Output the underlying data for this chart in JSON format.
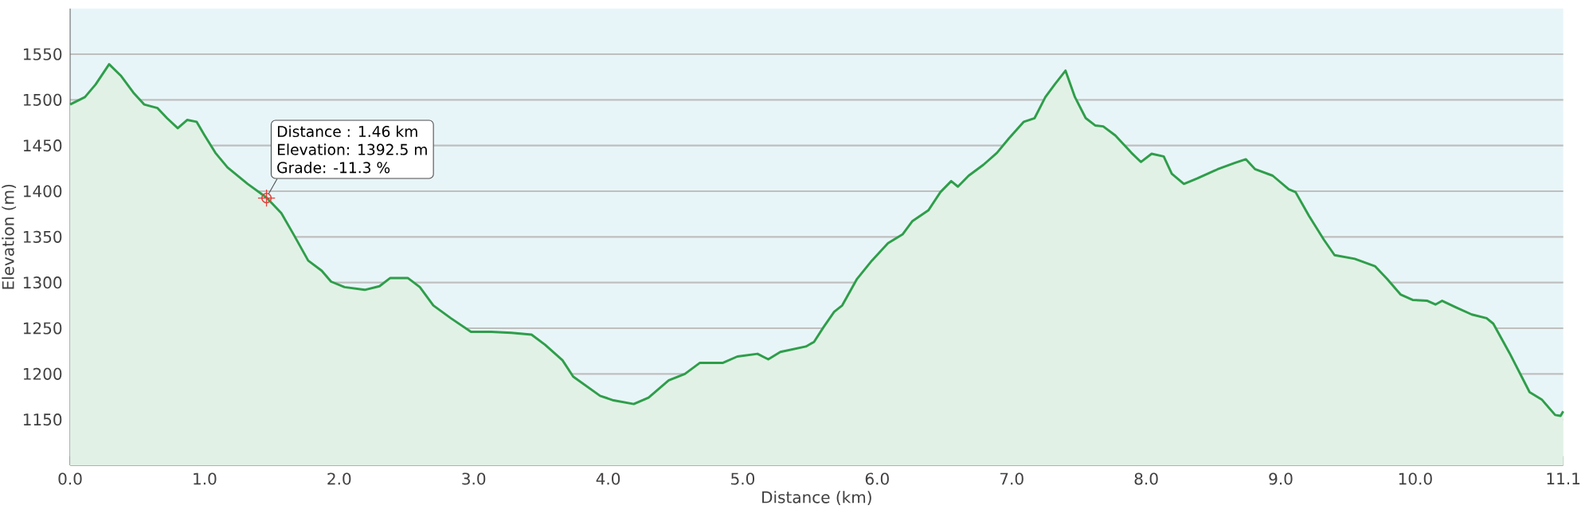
{
  "chart_data": {
    "type": "area",
    "xlabel": "Distance  (km)",
    "ylabel": "Elevation (m)",
    "xlim": [
      0,
      11.1
    ],
    "ylim": [
      1100,
      1600
    ],
    "xticks": [
      {
        "value": 0,
        "label": "0.0"
      },
      {
        "value": 1,
        "label": "1.0"
      },
      {
        "value": 2,
        "label": "2.0"
      },
      {
        "value": 3,
        "label": "3.0"
      },
      {
        "value": 4,
        "label": "4.0"
      },
      {
        "value": 5,
        "label": "5.0"
      },
      {
        "value": 6,
        "label": "6.0"
      },
      {
        "value": 7,
        "label": "7.0"
      },
      {
        "value": 8,
        "label": "8.0"
      },
      {
        "value": 9,
        "label": "9.0"
      },
      {
        "value": 10,
        "label": "10.0"
      },
      {
        "value": 11.1,
        "label": "11.1"
      }
    ],
    "yticks": [
      1150,
      1200,
      1250,
      1300,
      1350,
      1400,
      1450,
      1500,
      1550
    ],
    "grid": "y",
    "marker": "none",
    "line_style": "solid",
    "annotations": [
      "Distance : 1.46 km",
      "Elevation: 1392.5 m",
      "Grade: -11.3 %"
    ],
    "series": [
      {
        "color": "#2e9e4a",
        "x": [
          0,
          0.11,
          0.19,
          0.29,
          0.38,
          0.47,
          0.55,
          0.65,
          0.72,
          0.8,
          0.87,
          0.94,
          1.0,
          1.08,
          1.17,
          1.32,
          1.46,
          1.57,
          1.66,
          1.77,
          1.87,
          1.94,
          2.04,
          2.19,
          2.3,
          2.38,
          2.51,
          2.6,
          2.7,
          2.83,
          2.98,
          3.13,
          3.28,
          3.43,
          3.53,
          3.66,
          3.74,
          3.94,
          4.04,
          4.19,
          4.3,
          4.45,
          4.57,
          4.68,
          4.85,
          4.96,
          5.11,
          5.19,
          5.28,
          5.47,
          5.53,
          5.6,
          5.68,
          5.74,
          5.85,
          5.96,
          6.08,
          6.19,
          6.26,
          6.38,
          6.47,
          6.55,
          6.6,
          6.68,
          6.79,
          6.89,
          6.98,
          7.09,
          7.17,
          7.25,
          7.32,
          7.4,
          7.47,
          7.55,
          7.62,
          7.68,
          7.77,
          7.89,
          7.96,
          8.04,
          8.13,
          8.19,
          8.28,
          8.38,
          8.53,
          8.66,
          8.74,
          8.81,
          8.94,
          9.06,
          9.11,
          9.21,
          9.32,
          9.4,
          9.55,
          9.7,
          9.79,
          9.89,
          9.98,
          10.09,
          10.15,
          10.2,
          10.3,
          10.42,
          10.53,
          10.58,
          10.7,
          10.85,
          10.94,
          11.04,
          11.08,
          11.1
        ],
        "values": [
          1495,
          1503,
          1517,
          1539,
          1526,
          1508,
          1495,
          1491,
          1480,
          1469,
          1478,
          1476,
          1461,
          1442,
          1426,
          1408,
          1393,
          1376,
          1353,
          1324,
          1313,
          1301,
          1295,
          1292,
          1296,
          1305,
          1305,
          1295,
          1275,
          1261,
          1246,
          1246,
          1245,
          1243,
          1232,
          1215,
          1197,
          1176,
          1171,
          1167,
          1174,
          1193,
          1200,
          1212,
          1212,
          1219,
          1222,
          1216,
          1224,
          1230,
          1235,
          1251,
          1268,
          1275,
          1304,
          1324,
          1343,
          1353,
          1367,
          1379,
          1399,
          1411,
          1405,
          1417,
          1429,
          1442,
          1458,
          1476,
          1480,
          1503,
          1517,
          1532,
          1503,
          1480,
          1472,
          1471,
          1461,
          1442,
          1432,
          1441,
          1438,
          1419,
          1408,
          1414,
          1424,
          1431,
          1435,
          1424,
          1417,
          1402,
          1399,
          1373,
          1347,
          1330,
          1326,
          1318,
          1304,
          1287,
          1281,
          1280,
          1276,
          1280,
          1273,
          1265,
          1261,
          1255,
          1223,
          1180,
          1172,
          1155,
          1154,
          1159
        ]
      },
      {
        "type": "scatter",
        "marker": "cross",
        "color": "#e0403a",
        "x": [
          1.46
        ],
        "values": [
          1392.5
        ]
      }
    ]
  }
}
